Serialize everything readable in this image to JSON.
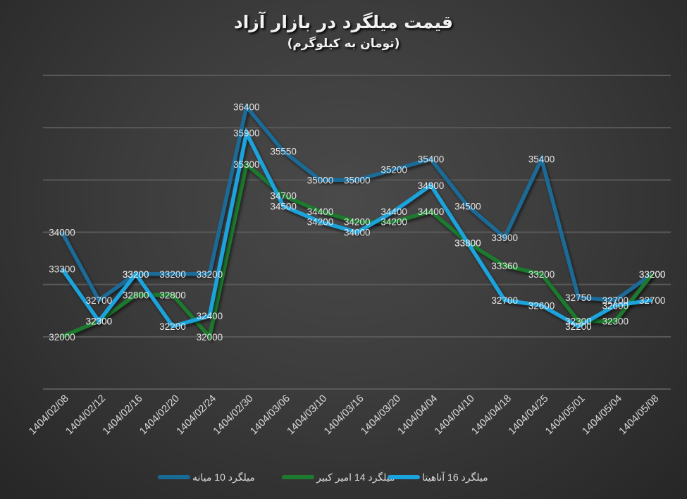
{
  "header": {
    "title": "قیمت میلگرد در بازار آزاد",
    "subtitle": "(تومان به کیلوگرم)"
  },
  "colors": {
    "background": "#3c3c3c",
    "gridline": "#595959",
    "label_text": "#e6e6e6",
    "series_mianeh": "#1a6a96",
    "series_amirkabir": "#1e7a2e",
    "series_anahita": "#1aa3dc"
  },
  "legend": {
    "items": [
      {
        "label": "میلگرد 10 میانه",
        "color": "#1a6a96"
      },
      {
        "label": "میلگرد 14 امیر کبیر",
        "color": "#1e7a2e"
      },
      {
        "label": "میلگرد 16 آناهیتا",
        "color": "#1aa3dc"
      }
    ]
  },
  "chart_data": {
    "type": "line",
    "title": "قیمت میلگرد در بازار آزاد",
    "subtitle": "(تومان به کیلوگرم)",
    "xlabel": "",
    "ylabel": "",
    "ylim": [
      31000,
      37000
    ],
    "grid": true,
    "y_axis_labels_visible": false,
    "data_labels": true,
    "legend_position": "bottom",
    "categories": [
      "1404/02/08",
      "1404/02/12",
      "1404/02/16",
      "1404/02/20",
      "1404/02/24",
      "1404/02/30",
      "1404/03/06",
      "1404/03/10",
      "1404/03/16",
      "1404/03/20",
      "1404/04/04",
      "1404/04/10",
      "1404/04/18",
      "1404/04/25",
      "1404/05/01",
      "1404/05/04",
      "1404/05/08"
    ],
    "series": [
      {
        "name": "میلگرد 10 میانه",
        "color": "#1a6a96",
        "values": [
          34000,
          32700,
          33200,
          33200,
          33200,
          36400,
          35550,
          35000,
          35000,
          35200,
          35400,
          34500,
          33900,
          35400,
          32750,
          32700,
          33200
        ]
      },
      {
        "name": "میلگرد 14 امیر کبیر",
        "color": "#1e7a2e",
        "values": [
          32000,
          32300,
          32800,
          32800,
          32000,
          35300,
          34700,
          34400,
          34200,
          34200,
          34400,
          33800,
          33360,
          33200,
          32300,
          32300,
          33200
        ]
      },
      {
        "name": "میلگرد 16 آناهیتا",
        "color": "#1aa3dc",
        "values": [
          33300,
          32300,
          33200,
          32200,
          32400,
          35900,
          34500,
          34200,
          34000,
          34400,
          34900,
          33800,
          32700,
          32600,
          32200,
          32600,
          32700
        ]
      }
    ]
  }
}
